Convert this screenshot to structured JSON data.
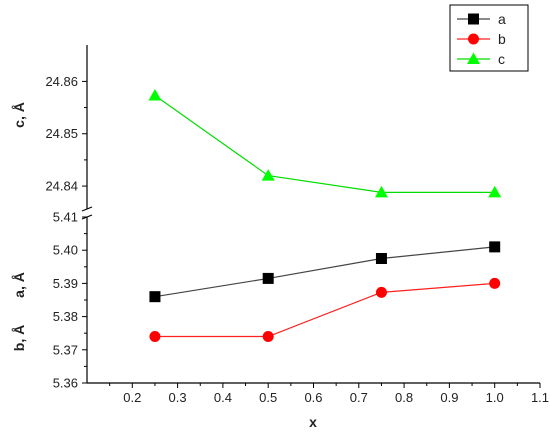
{
  "chart_data": {
    "type": "line",
    "xlabel": "x",
    "x": [
      0.25,
      0.5,
      0.75,
      1.0
    ],
    "xlim": [
      0.1,
      1.1
    ],
    "xticks": [
      "0.2",
      "0.3",
      "0.4",
      "0.5",
      "0.6",
      "0.7",
      "0.8",
      "0.9",
      "1.0",
      "1.1"
    ],
    "broken_y_axis": true,
    "panels": [
      {
        "id": "upper",
        "ylabel": "c, Å",
        "ylim": [
          24.836,
          24.866
        ],
        "yticks": [
          "24.84",
          "24.85",
          "24.86"
        ],
        "series_ids": [
          "c"
        ]
      },
      {
        "id": "lower",
        "ylabel_parts": [
          "b, Å",
          "a, Å"
        ],
        "ylim": [
          5.36,
          5.41
        ],
        "yticks": [
          "5.36",
          "5.37",
          "5.38",
          "5.39",
          "5.40",
          "5.41"
        ],
        "series_ids": [
          "a",
          "b"
        ]
      }
    ],
    "series": [
      {
        "id": "a",
        "name": "a",
        "color": "#000000",
        "line_color": "#444444",
        "marker": "square",
        "panel": "lower",
        "values": [
          5.386,
          5.3915,
          5.3975,
          5.401
        ]
      },
      {
        "id": "b",
        "name": "b",
        "color": "#ff0000",
        "line_color": "#ff2020",
        "marker": "circle",
        "panel": "lower",
        "values": [
          5.374,
          5.374,
          5.3873,
          5.39
        ]
      },
      {
        "id": "c",
        "name": "c",
        "color": "#00ff00",
        "line_color": "#00dd00",
        "marker": "triangle",
        "panel": "upper",
        "values": [
          24.8573,
          24.842,
          24.8388,
          24.8388
        ]
      }
    ],
    "legend": {
      "placement": "top-right",
      "entries": [
        "a",
        "b",
        "c"
      ]
    },
    "grid": false
  }
}
